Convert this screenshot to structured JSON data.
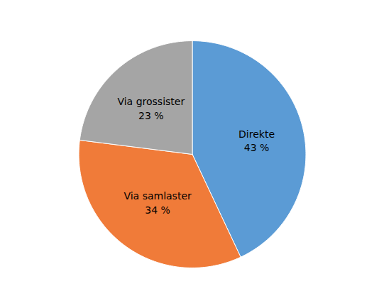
{
  "chart_data": {
    "type": "pie",
    "categories": [
      "Direkte",
      "Via samlaster",
      "Via grossister"
    ],
    "values": [
      43,
      34,
      23
    ],
    "value_labels": [
      "43 %",
      "34 %",
      "23 %"
    ],
    "colors": [
      "#5B9BD5",
      "#F07B39",
      "#A5A5A5"
    ],
    "data_labels": true
  }
}
